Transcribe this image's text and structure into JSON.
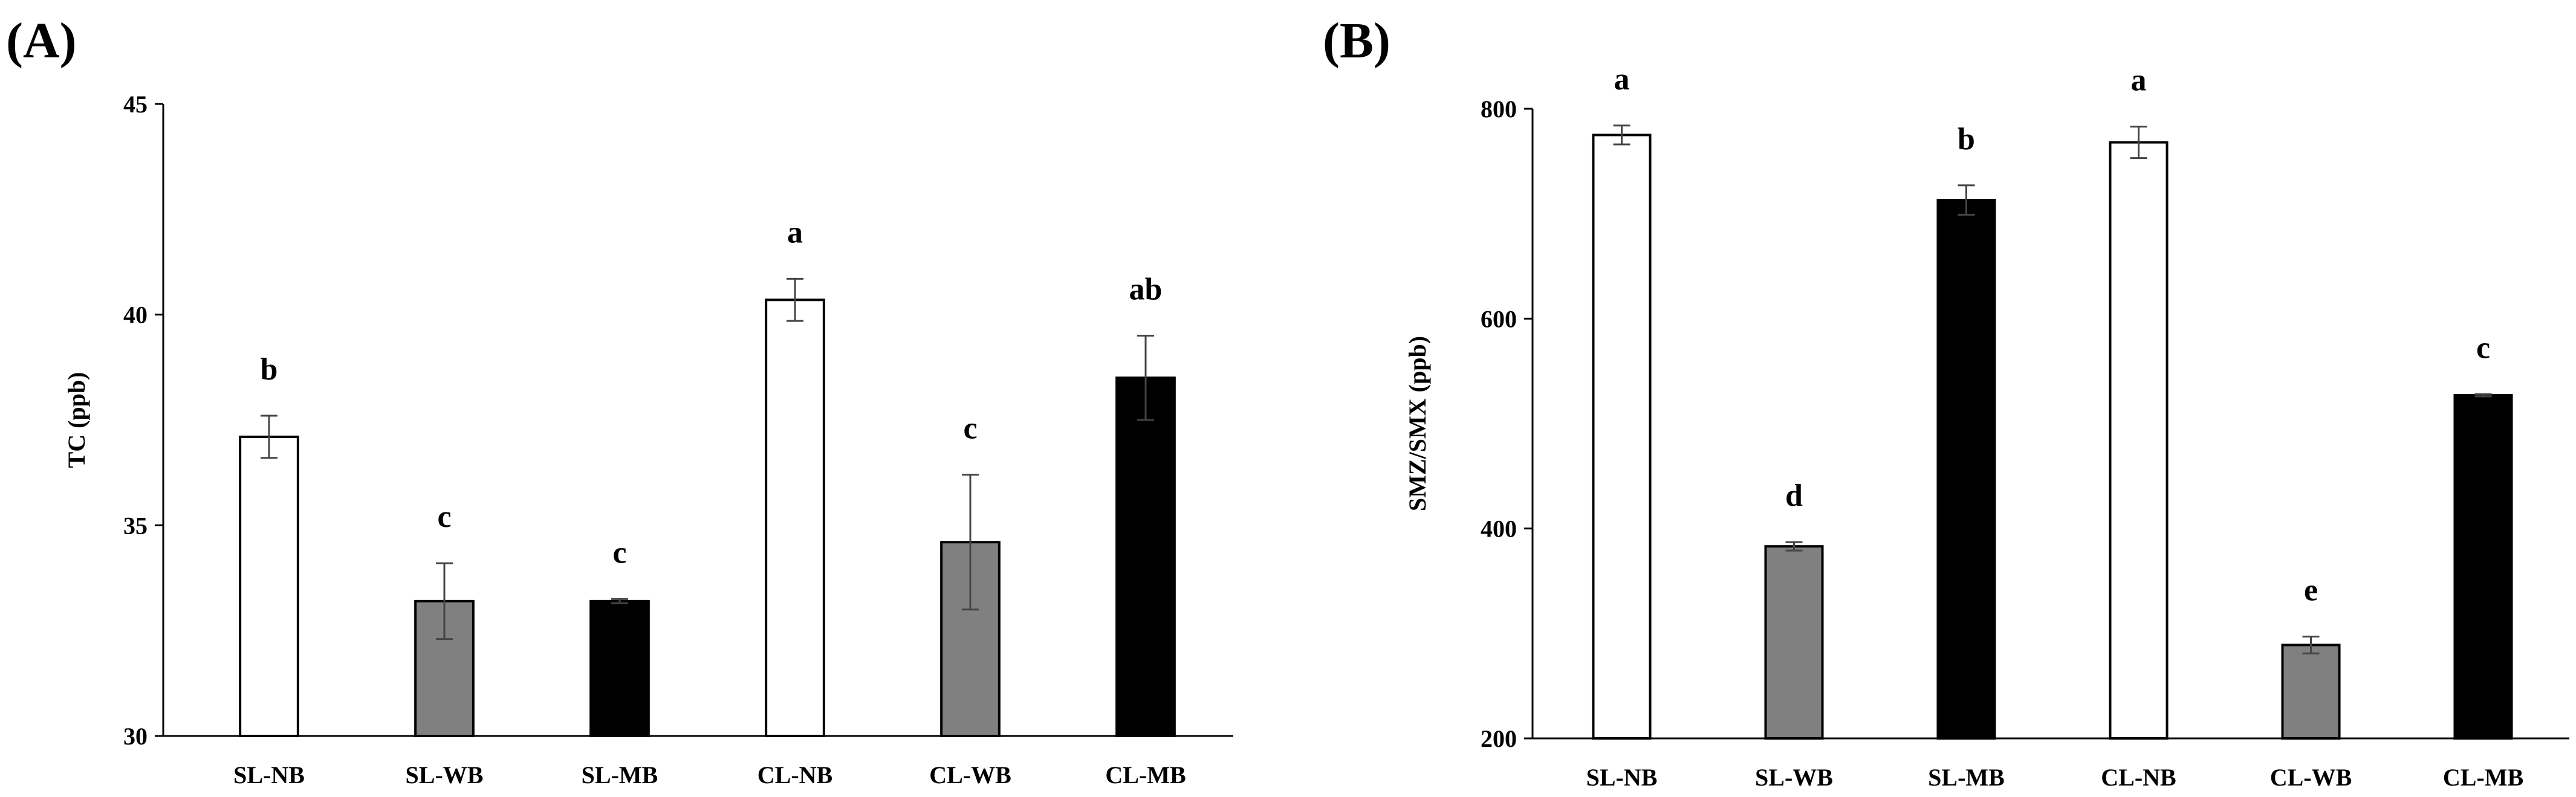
{
  "chart_data": [
    {
      "type": "bar",
      "panel_label": "(A)",
      "title": "",
      "xlabel": "",
      "ylabel": "TC (ppb)",
      "ylim": [
        30,
        45
      ],
      "yticks": [
        30,
        35,
        40,
        45
      ],
      "grid": false,
      "categories": [
        "SL-NB",
        "SL-WB",
        "SL-MB",
        "CL-NB",
        "CL-WB",
        "CL-MB"
      ],
      "values": [
        37.1,
        33.2,
        33.2,
        40.35,
        34.6,
        38.5
      ],
      "errors": [
        0.5,
        0.9,
        0.05,
        0.5,
        1.6,
        1.0
      ],
      "letters": [
        "b",
        "c",
        "c",
        "a",
        "c",
        "ab"
      ],
      "fills": [
        "#ffffff",
        "#808080",
        "#000000",
        "#ffffff",
        "#808080",
        "#000000"
      ]
    },
    {
      "type": "bar",
      "panel_label": "(B)",
      "title": "",
      "xlabel": "",
      "ylabel": "SMZ/SMX (ppb)",
      "ylim": [
        200,
        800
      ],
      "yticks": [
        200,
        400,
        600,
        800
      ],
      "grid": false,
      "categories": [
        "SL-NB",
        "SL-WB",
        "SL-MB",
        "CL-NB",
        "CL-WB",
        "CL-MB"
      ],
      "values": [
        775,
        383,
        713,
        768,
        289,
        527
      ],
      "errors": [
        9,
        4,
        14,
        15,
        8,
        1
      ],
      "letters": [
        "a",
        "d",
        "b",
        "a",
        "e",
        "c"
      ],
      "fills": [
        "#ffffff",
        "#808080",
        "#000000",
        "#ffffff",
        "#808080",
        "#000000"
      ]
    }
  ]
}
